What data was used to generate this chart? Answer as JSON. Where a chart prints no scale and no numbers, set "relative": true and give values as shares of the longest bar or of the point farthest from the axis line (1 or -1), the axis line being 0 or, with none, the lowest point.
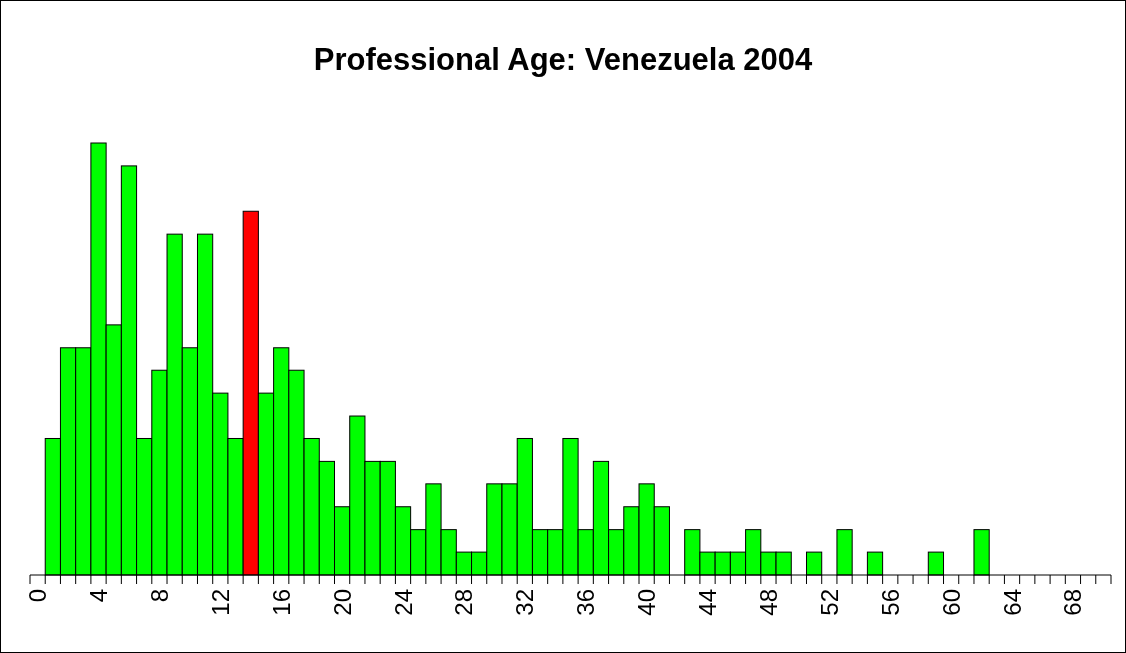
{
  "chart_data": {
    "type": "bar",
    "title": "Professional Age: Venezuela 2004",
    "relative": true,
    "categories": [
      "0",
      null,
      null,
      null,
      "4",
      null,
      null,
      null,
      "8",
      null,
      null,
      null,
      "12",
      null,
      null,
      null,
      "16",
      null,
      null,
      null,
      "20",
      null,
      null,
      null,
      "24",
      null,
      null,
      null,
      "28",
      null,
      null,
      null,
      "32",
      null,
      null,
      null,
      "36",
      null,
      null,
      null,
      "40",
      null,
      null,
      null,
      "44",
      null,
      null,
      null,
      "48",
      null,
      null,
      null,
      "52",
      null,
      null,
      null,
      "56",
      null,
      null,
      null,
      "60",
      null,
      null,
      null,
      "64",
      null,
      null,
      null,
      "68",
      null,
      null
    ],
    "values": [
      0,
      0.316,
      0.526,
      0.526,
      1,
      0.579,
      0.947,
      0.316,
      0.474,
      0.789,
      0.526,
      0.789,
      0.421,
      0.316,
      0.842,
      0.421,
      0.526,
      0.474,
      0.316,
      0.263,
      0.158,
      0.368,
      0.263,
      0.263,
      0.158,
      0.105,
      0.211,
      0.105,
      0.053,
      0.053,
      0.211,
      0.211,
      0.316,
      0.105,
      0.105,
      0.316,
      0.105,
      0.263,
      0.105,
      0.158,
      0.211,
      0.158,
      0,
      0.105,
      0.053,
      0.053,
      0.053,
      0.105,
      0.053,
      0.053,
      0,
      0.053,
      0,
      0.105,
      0,
      0.053,
      0,
      0,
      0,
      0.053,
      0,
      0,
      0.105,
      0,
      0,
      0,
      0,
      0,
      0,
      0,
      0
    ],
    "colors": [
      "#00ff00",
      "#00ff00",
      "#00ff00",
      "#00ff00",
      "#00ff00",
      "#00ff00",
      "#00ff00",
      "#00ff00",
      "#00ff00",
      "#00ff00",
      "#00ff00",
      "#00ff00",
      "#00ff00",
      "#00ff00",
      "#ff0000",
      "#00ff00",
      "#00ff00",
      "#00ff00",
      "#00ff00",
      "#00ff00",
      "#00ff00",
      "#00ff00",
      "#00ff00",
      "#00ff00",
      "#00ff00",
      "#00ff00",
      "#00ff00",
      "#00ff00",
      "#00ff00",
      "#00ff00",
      "#00ff00",
      "#00ff00",
      "#00ff00",
      "#00ff00",
      "#00ff00",
      "#00ff00",
      "#00ff00",
      "#00ff00",
      "#00ff00",
      "#00ff00",
      "#00ff00",
      "#00ff00",
      "#00ff00",
      "#00ff00",
      "#00ff00",
      "#00ff00",
      "#00ff00",
      "#00ff00",
      "#00ff00",
      "#00ff00",
      "#00ff00",
      "#00ff00",
      "#00ff00",
      "#00ff00",
      "#00ff00",
      "#00ff00",
      "#00ff00",
      "#00ff00",
      "#00ff00",
      "#00ff00",
      "#00ff00",
      "#00ff00",
      "#00ff00",
      "#00ff00",
      "#00ff00",
      "#00ff00",
      "#00ff00",
      "#00ff00",
      "#00ff00",
      "#00ff00",
      "#00ff00"
    ]
  }
}
